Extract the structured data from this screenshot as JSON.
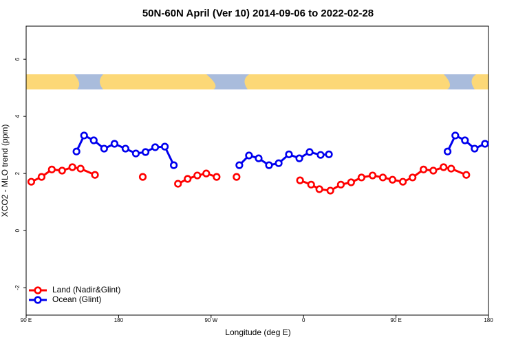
{
  "chart_data": {
    "type": "line",
    "title": "50N-60N April (Ver 10)   2014-09-06 to 2022-02-28",
    "x_label": "Longitude (deg E)",
    "y_label": "XCO2 - MLO trend (ppm)",
    "xlim": [
      90,
      540
    ],
    "ylim": [
      -2.96,
      7.16
    ],
    "xticks": [
      {
        "value": 90,
        "label": "90 E"
      },
      180,
      {
        "value": 270,
        "label": "90 W"
      },
      {
        "value": 360,
        "label": "0"
      },
      {
        "value": 450,
        "label": "90 E"
      },
      {
        "value": 540,
        "label": "180"
      }
    ],
    "yticks": [
      -2,
      0,
      2,
      4,
      6
    ],
    "legend": "bottom-left",
    "series": [
      {
        "name": "Land (Nadir&Glint)",
        "color": "#ff0000",
        "x": [
          95,
          105,
          115,
          125,
          135,
          143,
          157,
          180,
          203.5,
          220,
          237.8,
          247.2,
          256.6,
          265.3,
          275.4,
          285,
          294.8,
          320,
          356.6,
          367.4,
          375.4,
          386.1,
          396.3,
          406.3,
          416.4,
          427.2,
          437.2,
          446.6,
          456.7,
          466.1,
          476.8,
          486.3,
          496.3,
          503.7,
          518.4
        ],
        "values": [
          1.71,
          1.88,
          2.14,
          2.1,
          2.22,
          2.17,
          1.95,
          null,
          1.88,
          null,
          1.64,
          1.81,
          1.93,
          2.0,
          1.88,
          null,
          1.88,
          null,
          1.76,
          1.61,
          1.45,
          1.4,
          1.61,
          1.69,
          1.86,
          1.93,
          1.86,
          1.78,
          1.71,
          1.86,
          2.14,
          2.1,
          2.22,
          2.17,
          1.95
        ]
      },
      {
        "name": "Ocean (Glint)",
        "color": "#0000ee",
        "x": [
          139,
          146.4,
          155.8,
          165.9,
          176,
          186.7,
          196.8,
          206.2,
          215.6,
          225,
          233.7,
          265,
          297.5,
          306.9,
          316.3,
          326.4,
          335.8,
          345.8,
          355.9,
          365.9,
          376.6,
          384.7,
          450,
          500.2,
          507.7,
          517.1,
          526.5,
          536.6
        ],
        "values": [
          2.77,
          3.33,
          3.16,
          2.87,
          3.04,
          2.87,
          2.7,
          2.75,
          2.92,
          2.94,
          2.29,
          null,
          2.29,
          2.63,
          2.53,
          2.29,
          2.36,
          2.67,
          2.53,
          2.75,
          2.65,
          2.67,
          null,
          2.77,
          3.33,
          3.16,
          2.87,
          3.04
        ]
      }
    ]
  }
}
